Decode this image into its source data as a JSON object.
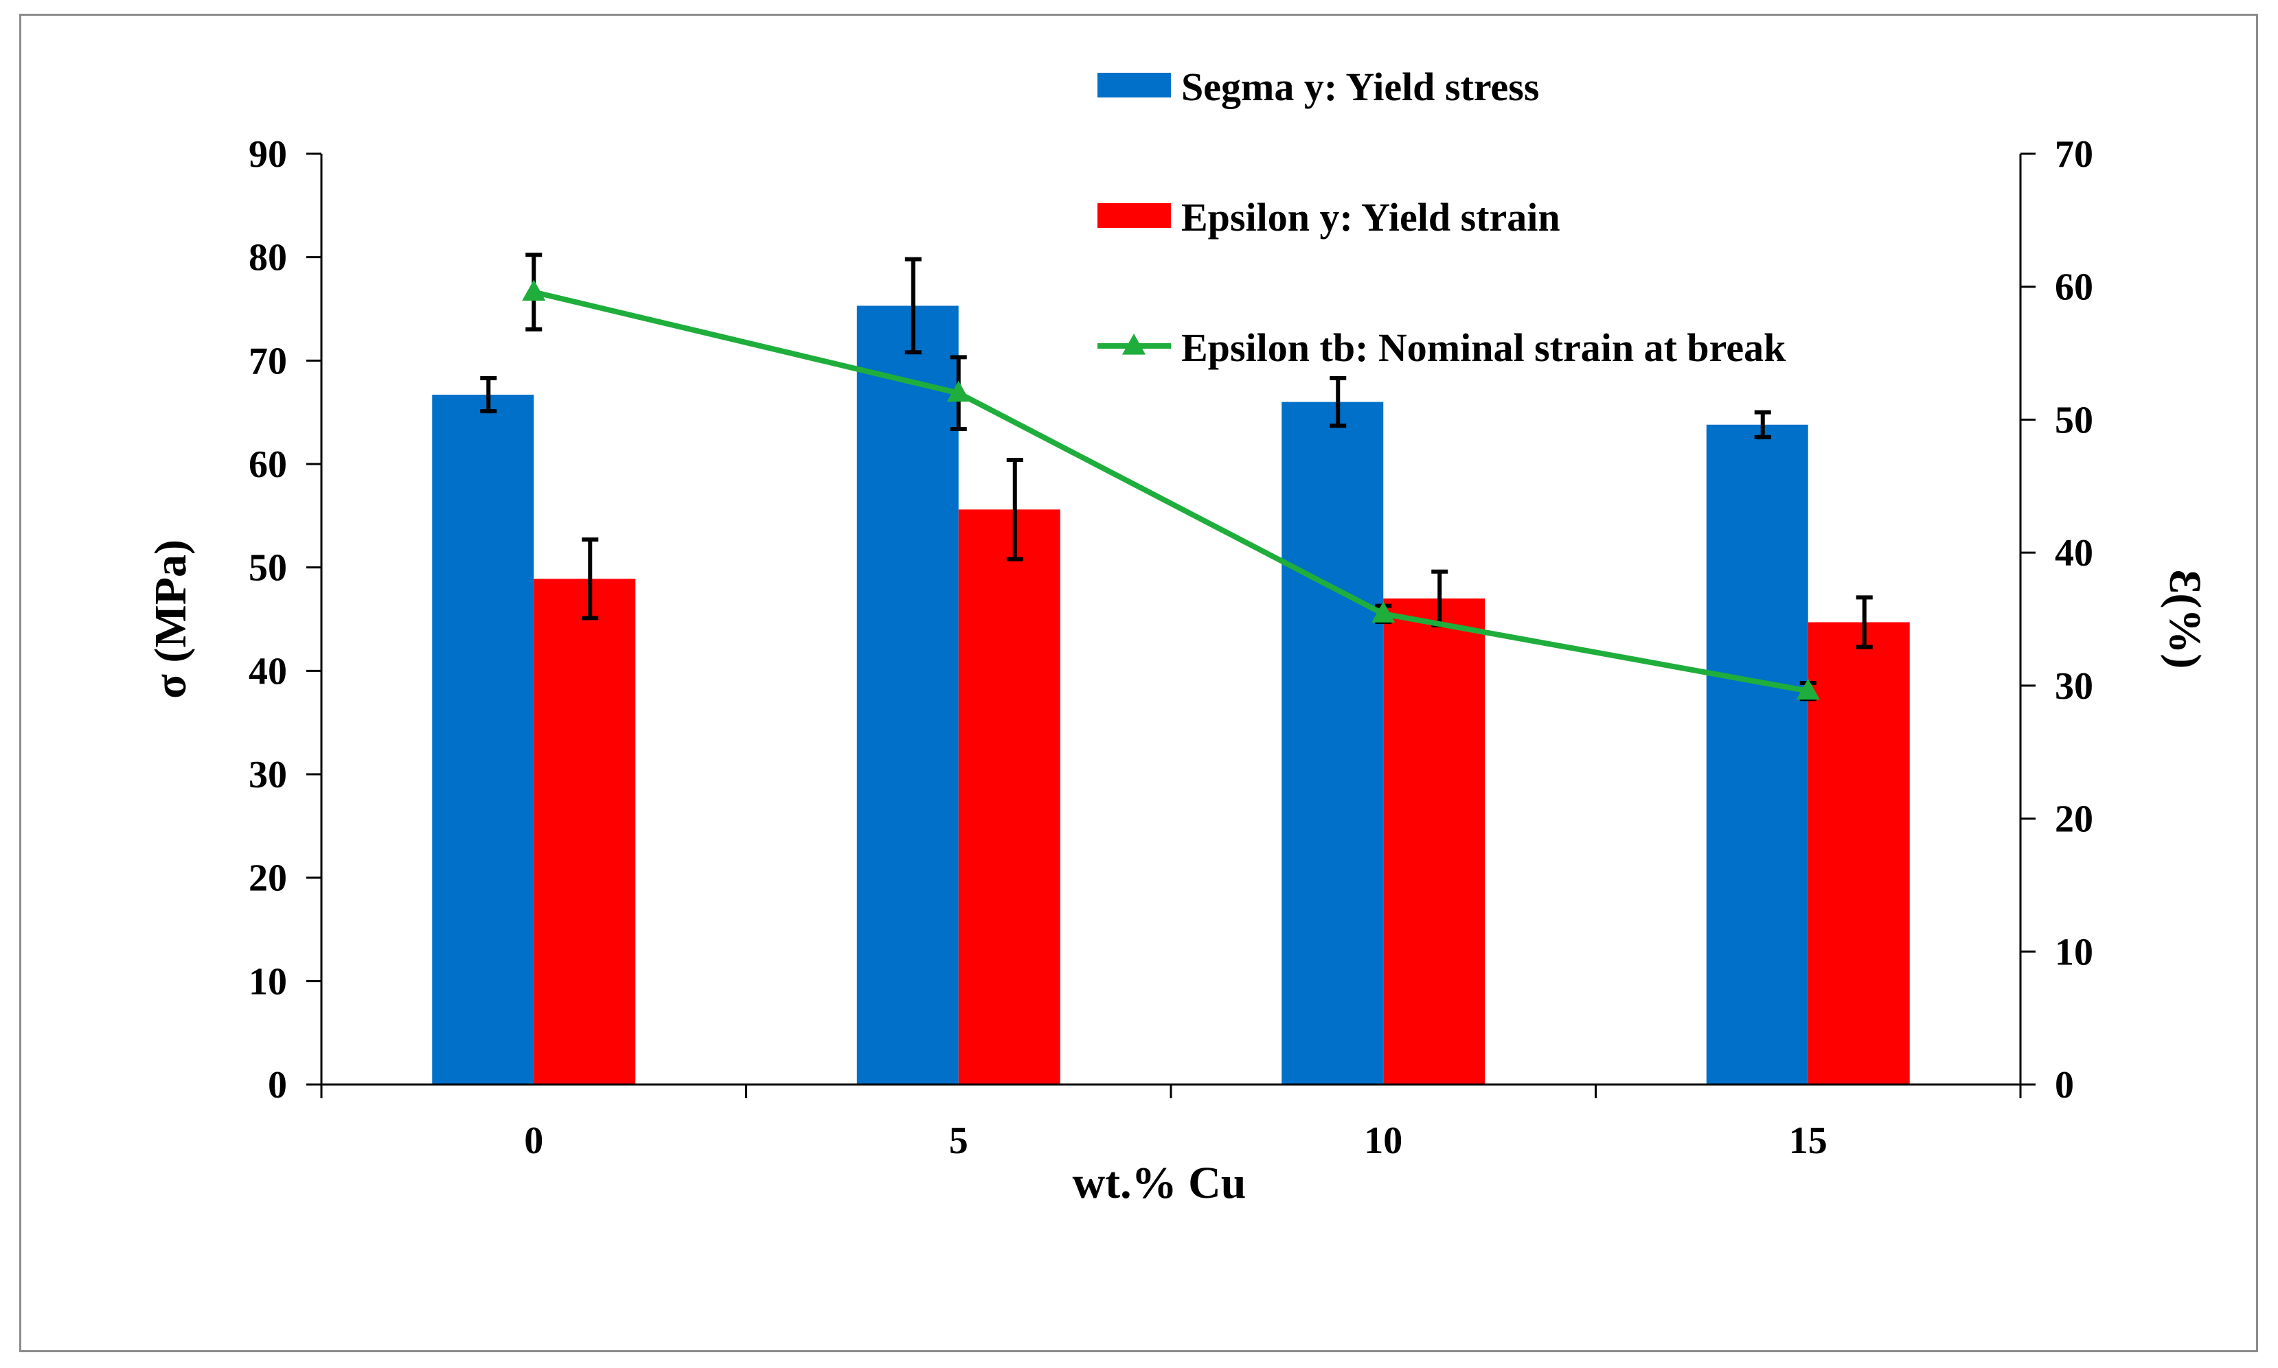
{
  "chart_data": {
    "type": "bar",
    "title": "",
    "xlabel": "wt.% Cu",
    "ylabel": "σ (MPa)",
    "y2label": "Ɛ(%)",
    "categories": [
      "0",
      "5",
      "10",
      "15"
    ],
    "ylim": [
      0,
      90
    ],
    "y2lim": [
      0,
      70
    ],
    "yticks": [
      0,
      10,
      20,
      30,
      40,
      50,
      60,
      70,
      80,
      90
    ],
    "y2ticks": [
      0,
      10,
      20,
      30,
      40,
      50,
      60,
      70
    ],
    "grid": false,
    "legend_position": "top-center",
    "series": [
      {
        "name": "Segma y: Yield stress",
        "kind": "bar",
        "axis": "left",
        "color": "#0070c8",
        "values": [
          66.7,
          75.3,
          66.0,
          63.8
        ],
        "errors": [
          1.6,
          4.5,
          2.3,
          1.2
        ]
      },
      {
        "name": "Epsilon y: Yield strain",
        "kind": "bar",
        "axis": "left",
        "color": "#ff0000",
        "values": [
          48.9,
          55.6,
          47.0,
          44.7
        ],
        "errors": [
          3.8,
          4.8,
          2.6,
          2.4
        ]
      },
      {
        "name": "Epsilon tb: Nominal strain at break",
        "kind": "line",
        "axis": "right",
        "color": "#1fae3c",
        "marker": "triangle",
        "values": [
          59.6,
          52.0,
          35.4,
          29.6
        ],
        "errors": [
          2.8,
          2.7,
          0.6,
          0.6
        ]
      }
    ]
  }
}
